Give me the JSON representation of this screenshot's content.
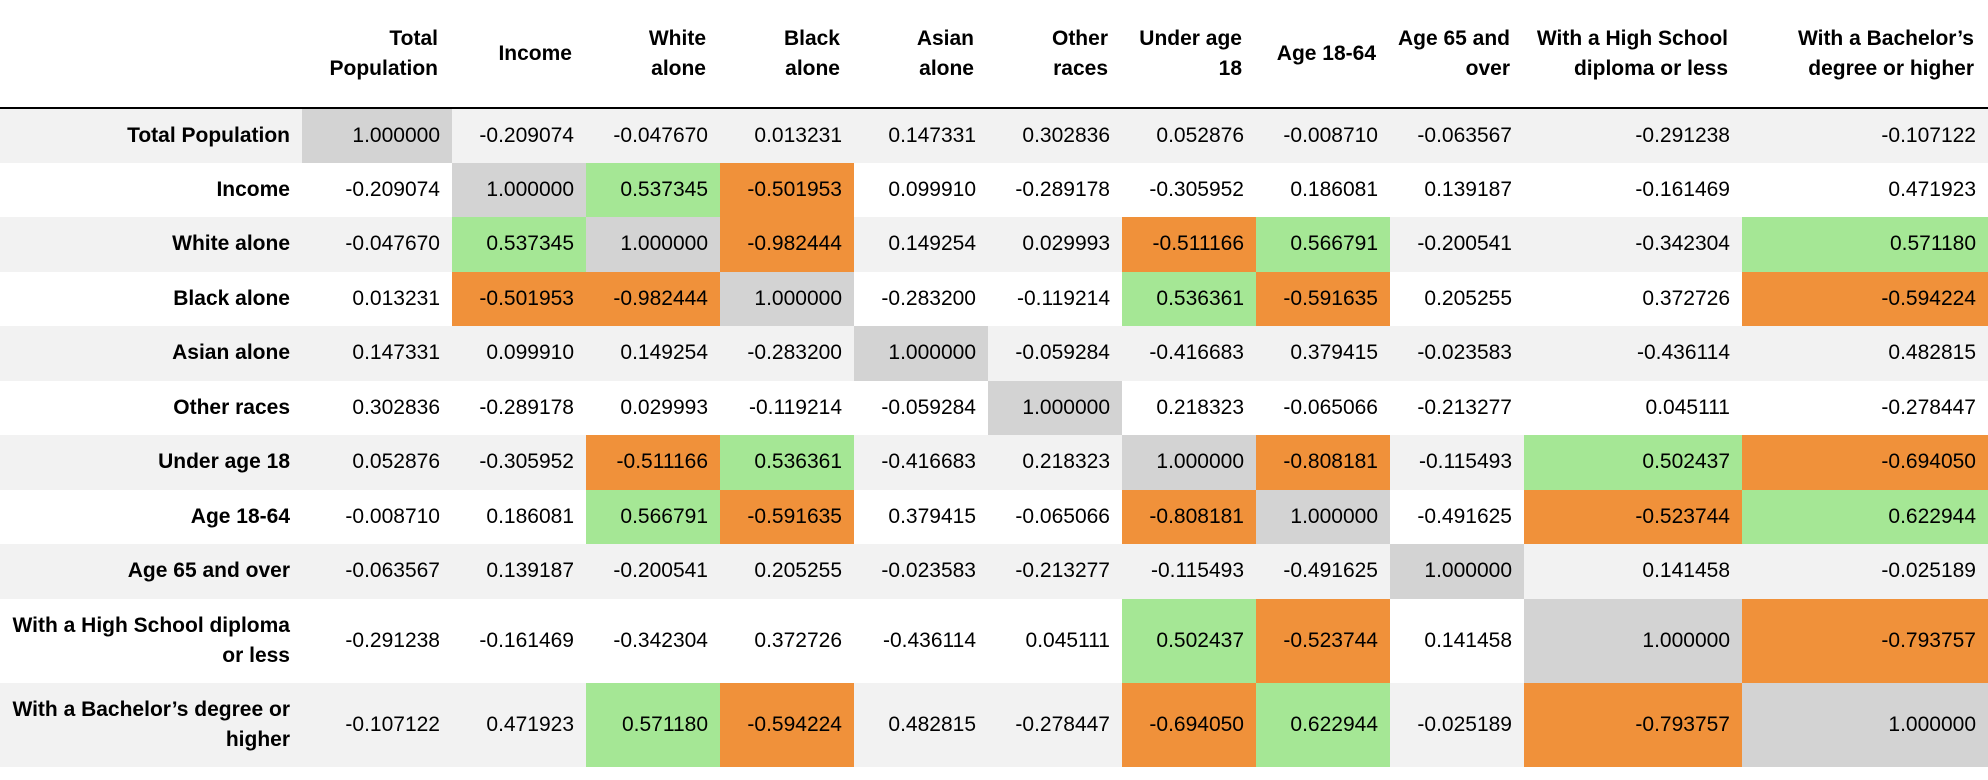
{
  "columns": [
    "Total Population",
    "Income",
    "White alone",
    "Black alone",
    "Asian alone",
    "Other races",
    "Under age 18",
    "Age 18-64",
    "Age 65 and over",
    "With a High School diploma or less",
    "With a Bachelor’s degree or higher"
  ],
  "rows": [
    {
      "label": "Total Population",
      "values": [
        "1.000000",
        "-0.209074",
        "-0.047670",
        "0.013231",
        "0.147331",
        "0.302836",
        "0.052876",
        "-0.008710",
        "-0.063567",
        "-0.291238",
        "-0.107122"
      ]
    },
    {
      "label": "Income",
      "values": [
        "-0.209074",
        "1.000000",
        "0.537345",
        "-0.501953",
        "0.099910",
        "-0.289178",
        "-0.305952",
        "0.186081",
        "0.139187",
        "-0.161469",
        "0.471923"
      ]
    },
    {
      "label": "White alone",
      "values": [
        "-0.047670",
        "0.537345",
        "1.000000",
        "-0.982444",
        "0.149254",
        "0.029993",
        "-0.511166",
        "0.566791",
        "-0.200541",
        "-0.342304",
        "0.571180"
      ]
    },
    {
      "label": "Black alone",
      "values": [
        "0.013231",
        "-0.501953",
        "-0.982444",
        "1.000000",
        "-0.283200",
        "-0.119214",
        "0.536361",
        "-0.591635",
        "0.205255",
        "0.372726",
        "-0.594224"
      ]
    },
    {
      "label": "Asian alone",
      "values": [
        "0.147331",
        "0.099910",
        "0.149254",
        "-0.283200",
        "1.000000",
        "-0.059284",
        "-0.416683",
        "0.379415",
        "-0.023583",
        "-0.436114",
        "0.482815"
      ]
    },
    {
      "label": "Other races",
      "values": [
        "0.302836",
        "-0.289178",
        "0.029993",
        "-0.119214",
        "-0.059284",
        "1.000000",
        "0.218323",
        "-0.065066",
        "-0.213277",
        "0.045111",
        "-0.278447"
      ]
    },
    {
      "label": "Under age 18",
      "values": [
        "0.052876",
        "-0.305952",
        "-0.511166",
        "0.536361",
        "-0.416683",
        "0.218323",
        "1.000000",
        "-0.808181",
        "-0.115493",
        "0.502437",
        "-0.694050"
      ]
    },
    {
      "label": "Age 18-64",
      "values": [
        "-0.008710",
        "0.186081",
        "0.566791",
        "-0.591635",
        "0.379415",
        "-0.065066",
        "-0.808181",
        "1.000000",
        "-0.491625",
        "-0.523744",
        "0.622944"
      ]
    },
    {
      "label": "Age 65 and over",
      "values": [
        "-0.063567",
        "0.139187",
        "-0.200541",
        "0.205255",
        "-0.023583",
        "-0.213277",
        "-0.115493",
        "-0.491625",
        "1.000000",
        "0.141458",
        "-0.025189"
      ]
    },
    {
      "label": "With a High School diploma or less",
      "values": [
        "-0.291238",
        "-0.161469",
        "-0.342304",
        "0.372726",
        "-0.436114",
        "0.045111",
        "0.502437",
        "-0.523744",
        "0.141458",
        "1.000000",
        "-0.793757"
      ]
    },
    {
      "label": "With a Bachelor’s degree or higher",
      "values": [
        "-0.107122",
        "0.471923",
        "0.571180",
        "-0.594224",
        "0.482815",
        "-0.278447",
        "-0.694050",
        "0.622944",
        "-0.025189",
        "-0.793757",
        "1.000000"
      ]
    }
  ],
  "highlight": {
    "threshold": 0.5,
    "positive_color": "#a5e795",
    "negative_color": "#f0913a",
    "diagonal_color": "#d3d3d3"
  }
}
